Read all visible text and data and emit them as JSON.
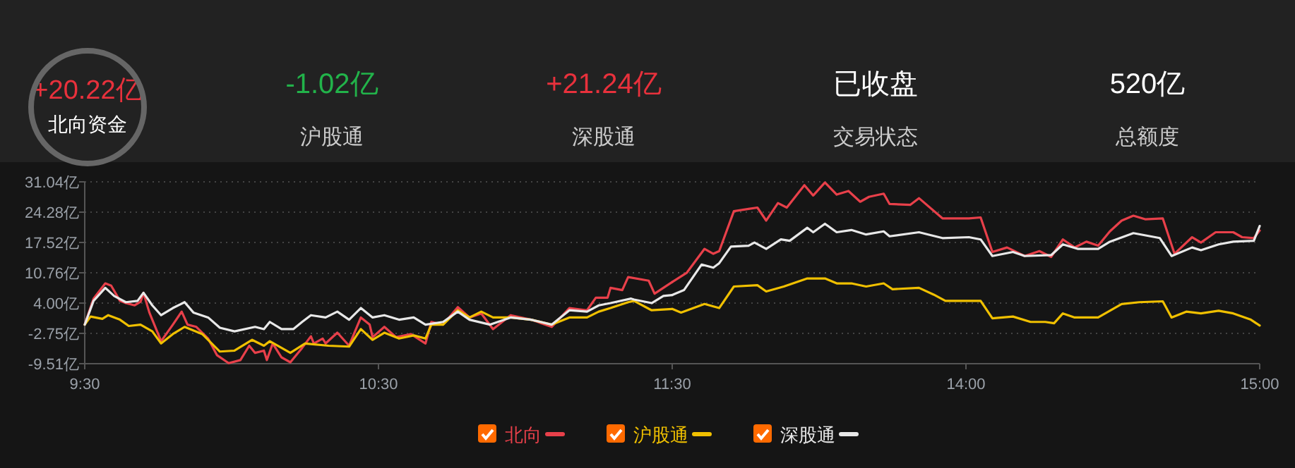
{
  "chart_data": [
    {
      "type": "other",
      "annotations": [
        "+20.22亿",
        "北向资金",
        "-1.02亿",
        "沪股通",
        "+21.24亿",
        "深股通",
        "已收盘",
        "交易状态",
        "520亿",
        "总额度"
      ]
    },
    {
      "type": "line",
      "legend": "bottom",
      "grid": "y",
      "marker": "none",
      "line_style": "solid",
      "xlim": [
        9.5,
        11.5
      ],
      "xticks": [
        {
          "value": 9.5,
          "label": "9:30"
        },
        {
          "value": 10.5,
          "label": "10:30"
        },
        {
          "value": 11.5,
          "label": "11:30"
        }
      ],
      "ylim": [
        -9.51,
        31.04
      ],
      "yticks": [
        {
          "value": -9.51,
          "label": "-9.51亿"
        },
        {
          "value": -2.75,
          "label": "-2.75亿"
        },
        {
          "value": 4.0,
          "label": "4.00亿"
        },
        {
          "value": 10.76,
          "label": "10.76亿"
        },
        {
          "value": 17.52,
          "label": "17.52亿"
        },
        {
          "value": 24.28,
          "label": "24.28亿"
        },
        {
          "value": 31.04,
          "label": "31.04亿"
        }
      ],
      "series": [
        {
          "name": "北向",
          "color": "#e8404a",
          "x": [
            9.5,
            9.53,
            9.57,
            9.59,
            9.62,
            9.64,
            9.67,
            9.69,
            9.7,
            9.72,
            9.76,
            9.8,
            9.83,
            9.85,
            9.88,
            9.92,
            9.95,
            9.99,
            10.03,
            10.06,
            10.08,
            10.11,
            10.12,
            10.14,
            10.17,
            10.2,
            10.24,
            10.27,
            10.28,
            10.31,
            10.32,
            10.36,
            10.4,
            10.44,
            10.47,
            10.48,
            10.52,
            10.56,
            10.61,
            10.66,
            10.68,
            10.72,
            10.77,
            10.81,
            10.85,
            10.89,
            10.95,
            11.02,
            11.09,
            11.15,
            11.21,
            11.24,
            11.28,
            11.29,
            11.33,
            11.35,
            11.42,
            11.44,
            11.5
          ],
          "values": [
            -0.8,
            5,
            8.4,
            7.9,
            4.5,
            4,
            3.5,
            4.3,
            6.3,
            1.9,
            -4.5,
            -0.8,
            2.1,
            -0.8,
            -1.3,
            -3.9,
            -7.6,
            -9.4,
            -8.7,
            -5.5,
            -7.1,
            -6.6,
            -8.7,
            -5,
            -8.1,
            -9.2,
            -6,
            -3.4,
            -5,
            -3.9,
            -5,
            -2.6,
            -5.5,
            0.8,
            -0.8,
            -3.6,
            -1.3,
            -3.6,
            -2.9,
            -5,
            -0.2,
            -0.8,
            3.1,
            0.8,
            1.7,
            -1.8,
            1.3,
            0.3,
            -1.3,
            2.9,
            2.4,
            5.2,
            5.2,
            7.4,
            6.9,
            9.8,
            9,
            6.1,
            8.7
          ]
        },
        {
          "name": "沪股通",
          "color": "#f0c000",
          "x": [
            9.5,
            9.52,
            9.56,
            9.58,
            9.62,
            9.65,
            9.69,
            9.73,
            9.76,
            9.8,
            9.84,
            9.9,
            9.96,
            10.01,
            10.07,
            10.11,
            10.13,
            10.2,
            10.25,
            10.33,
            10.4,
            10.44,
            10.48,
            10.52,
            10.57,
            10.62,
            10.66,
            10.68,
            10.72,
            10.77,
            10.81,
            10.85,
            10.89,
            10.95,
            11.02,
            11.09,
            11.15,
            11.21,
            11.25,
            11.29,
            11.35,
            11.37,
            11.43,
            11.5
          ],
          "values": [
            -0.8,
            1,
            0.5,
            1.3,
            0.3,
            -1.1,
            -0.8,
            -2.3,
            -5,
            -2.9,
            -1.3,
            -2.9,
            -6.8,
            -6.6,
            -4.2,
            -5.5,
            -4.5,
            -7.1,
            -5,
            -5.5,
            -5.7,
            -1.8,
            -4.2,
            -2.6,
            -3.9,
            -3.2,
            -3.9,
            -0.8,
            -0.8,
            2.4,
            0.8,
            2.1,
            0.8,
            0.8,
            0.3,
            -0.8,
            0.8,
            0.8,
            2.1,
            2.9,
            4.2,
            4.5,
            2.4,
            2.7
          ]
        },
        {
          "name": "深股通",
          "color": "#e8e8e8",
          "x": [
            9.5,
            9.53,
            9.57,
            9.6,
            9.64,
            9.68,
            9.7,
            9.73,
            9.76,
            9.8,
            9.84,
            9.87,
            9.92,
            9.96,
            10.01,
            10.08,
            10.11,
            10.13,
            10.17,
            10.21,
            10.24,
            10.27,
            10.32,
            10.36,
            10.4,
            10.44,
            10.48,
            10.52,
            10.57,
            10.62,
            10.66,
            10.72,
            10.77,
            10.81,
            10.88,
            10.95,
            11.02,
            11.09,
            11.15,
            11.21,
            11.25,
            11.29,
            11.36,
            11.37,
            11.43,
            11.47,
            11.5
          ],
          "values": [
            -0.8,
            4.5,
            7.4,
            5.6,
            4.2,
            4.5,
            6.3,
            3.5,
            1.3,
            2.9,
            4.2,
            1.9,
            0.8,
            -1.5,
            -2.3,
            -1.3,
            -1.8,
            -0.2,
            -1.8,
            -1.8,
            -0.2,
            1.3,
            0.8,
            2.1,
            0.3,
            2.9,
            0.8,
            1.3,
            0.3,
            0.8,
            -0.8,
            -0.2,
            2.1,
            0.3,
            -0.8,
            0.8,
            0.3,
            -0.8,
            2.4,
            2.1,
            3.5,
            4,
            5,
            4.8,
            4,
            5.6,
            5.8
          ]
        }
      ]
    },
    {
      "type": "line",
      "grid": "y",
      "marker": "none",
      "line_style": "solid",
      "tick_labels": "x",
      "xlim": [
        13,
        15
      ],
      "xticks": [
        {
          "value": 14,
          "label": "14:00"
        },
        {
          "value": 15,
          "label": "15:00"
        }
      ],
      "ylim": [
        -9.51,
        31.04
      ],
      "series": [
        {
          "color": "#e8404a",
          "x": [
            13,
            13.05,
            13.11,
            13.14,
            13.16,
            13.21,
            13.26,
            13.29,
            13.32,
            13.36,
            13.39,
            13.45,
            13.48,
            13.52,
            13.56,
            13.6,
            13.64,
            13.67,
            13.72,
            13.74,
            13.81,
            13.84,
            13.92,
            14.01,
            14.05,
            14.09,
            14.14,
            14.2,
            14.25,
            14.29,
            14.33,
            14.37,
            14.41,
            14.45,
            14.49,
            14.53,
            14.57,
            14.61,
            14.67,
            14.71,
            14.77,
            14.8,
            14.85,
            14.91,
            14.94,
            14.98,
            15
          ],
          "values": [
            8.7,
            10.8,
            16.1,
            15,
            15.6,
            24.5,
            25,
            25.3,
            22.4,
            26.3,
            25.3,
            30.3,
            28,
            30.9,
            28.2,
            29,
            26.6,
            27.7,
            28.4,
            26.1,
            25.9,
            27.4,
            22.9,
            22.9,
            23.1,
            15.4,
            16.4,
            14.5,
            15.6,
            14.3,
            18.2,
            16.4,
            17.7,
            16.8,
            20,
            22.4,
            23.5,
            22.7,
            22.9,
            15,
            18.7,
            17.5,
            19.8,
            19.8,
            18.7,
            18.5,
            20.2
          ]
        },
        {
          "color": "#f0c000",
          "x": [
            13,
            13.03,
            13.11,
            13.16,
            13.21,
            13.29,
            13.32,
            13.38,
            13.46,
            13.52,
            13.56,
            13.61,
            13.66,
            13.72,
            13.75,
            13.84,
            13.89,
            13.93,
            14.03,
            14.05,
            14.09,
            14.16,
            14.22,
            14.27,
            14.3,
            14.33,
            14.37,
            14.45,
            14.53,
            14.59,
            14.67,
            14.7,
            14.75,
            14.8,
            14.86,
            14.91,
            14.97,
            15
          ],
          "values": [
            2.7,
            1.9,
            3.8,
            2.9,
            7.7,
            8,
            6.6,
            7.7,
            9.5,
            9.5,
            8.4,
            8.4,
            7.7,
            8.4,
            7.1,
            7.4,
            5.9,
            4.5,
            4.5,
            4.5,
            0.6,
            1,
            -0.2,
            -0.2,
            -0.5,
            1.7,
            0.8,
            0.8,
            3.8,
            4.2,
            4.4,
            0.8,
            2.1,
            1.7,
            2.3,
            1.7,
            0.3,
            -1
          ]
        },
        {
          "color": "#e8e8e8",
          "x": [
            13,
            13.04,
            13.1,
            13.14,
            13.16,
            13.2,
            13.26,
            13.28,
            13.32,
            13.37,
            13.4,
            13.46,
            13.48,
            13.52,
            13.56,
            13.61,
            13.66,
            13.72,
            13.74,
            13.84,
            13.92,
            14.01,
            14.05,
            14.09,
            14.16,
            14.2,
            14.29,
            14.33,
            14.38,
            14.45,
            14.49,
            14.57,
            14.66,
            14.7,
            14.77,
            14.8,
            14.86,
            14.91,
            14.98,
            15
          ],
          "values": [
            5.8,
            6.9,
            12.6,
            11.9,
            12.9,
            16.6,
            16.8,
            17.5,
            16.1,
            18.2,
            17.9,
            20.8,
            19.8,
            21.7,
            19.8,
            20.3,
            19.3,
            20,
            18.9,
            19.8,
            18.5,
            18.7,
            18.2,
            14.5,
            15.4,
            14.5,
            14.7,
            17.1,
            16.1,
            16.1,
            17.7,
            19.6,
            18.5,
            14.5,
            16.4,
            15.8,
            17.1,
            17.7,
            17.9,
            21.2
          ]
        }
      ]
    }
  ]
}
